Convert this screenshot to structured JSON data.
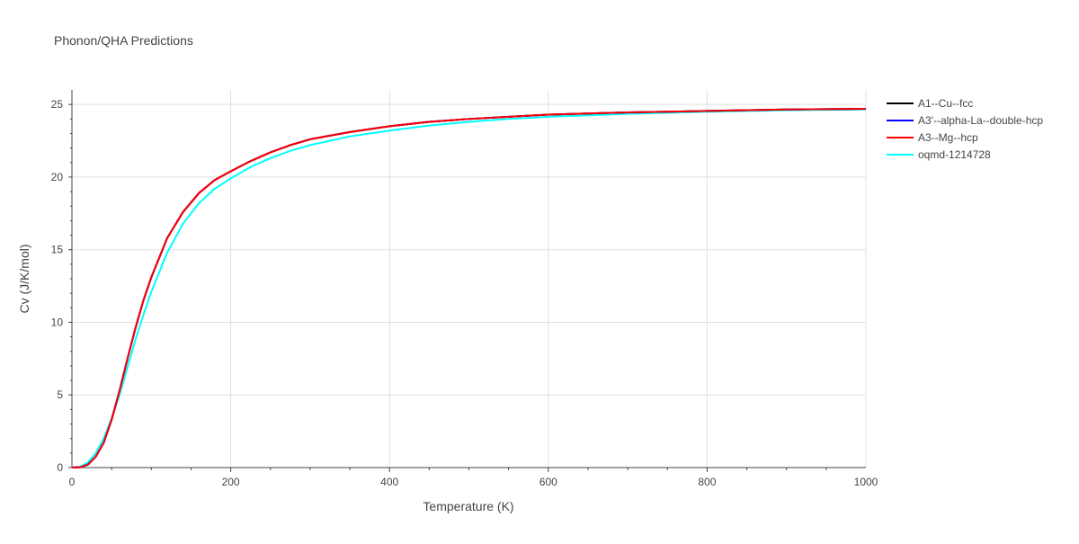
{
  "chart_data": {
    "type": "line",
    "title": "Phonon/QHA Predictions",
    "xlabel": "Temperature (K)",
    "ylabel": "Cv (J/K/mol)",
    "xlim": [
      0,
      1000
    ],
    "ylim": [
      0,
      26
    ],
    "x_ticks": [
      0,
      200,
      400,
      600,
      800,
      1000
    ],
    "y_ticks": [
      0,
      5,
      10,
      15,
      20,
      25
    ],
    "grid": true,
    "legend_position": "right",
    "x": [
      0,
      10,
      20,
      30,
      40,
      50,
      60,
      70,
      80,
      90,
      100,
      120,
      140,
      160,
      180,
      200,
      225,
      250,
      275,
      300,
      350,
      400,
      450,
      500,
      550,
      600,
      700,
      800,
      900,
      1000
    ],
    "series": [
      {
        "name": "A1--Cu--fcc",
        "color": "#000000",
        "values": [
          0,
          0.02,
          0.2,
          0.75,
          1.7,
          3.3,
          5.3,
          7.5,
          9.6,
          11.5,
          13.1,
          15.8,
          17.6,
          18.9,
          19.8,
          20.4,
          21.1,
          21.7,
          22.2,
          22.6,
          23.1,
          23.5,
          23.8,
          24.0,
          24.15,
          24.3,
          24.45,
          24.55,
          24.65,
          24.7
        ]
      },
      {
        "name": "A3'--alpha-La--double-hcp",
        "color": "#0000ff",
        "values": [
          0,
          0.02,
          0.2,
          0.75,
          1.7,
          3.3,
          5.3,
          7.5,
          9.6,
          11.5,
          13.1,
          15.8,
          17.6,
          18.9,
          19.8,
          20.4,
          21.1,
          21.7,
          22.2,
          22.6,
          23.1,
          23.5,
          23.8,
          24.0,
          24.15,
          24.3,
          24.45,
          24.55,
          24.65,
          24.7
        ]
      },
      {
        "name": "A3--Mg--hcp",
        "color": "#ff0000",
        "values": [
          0,
          0.02,
          0.2,
          0.75,
          1.7,
          3.3,
          5.3,
          7.5,
          9.6,
          11.5,
          13.1,
          15.8,
          17.6,
          18.9,
          19.8,
          20.4,
          21.1,
          21.7,
          22.2,
          22.6,
          23.1,
          23.5,
          23.8,
          24.0,
          24.15,
          24.3,
          24.45,
          24.55,
          24.65,
          24.7
        ]
      },
      {
        "name": "oqmd-1214728",
        "color": "#00ffff",
        "values": [
          0,
          0.05,
          0.35,
          1.0,
          2.0,
          3.4,
          5.0,
          6.9,
          8.8,
          10.5,
          12.1,
          14.8,
          16.8,
          18.2,
          19.2,
          19.9,
          20.7,
          21.3,
          21.8,
          22.2,
          22.8,
          23.2,
          23.55,
          23.8,
          24.0,
          24.15,
          24.35,
          24.5,
          24.6,
          24.65
        ]
      }
    ]
  }
}
